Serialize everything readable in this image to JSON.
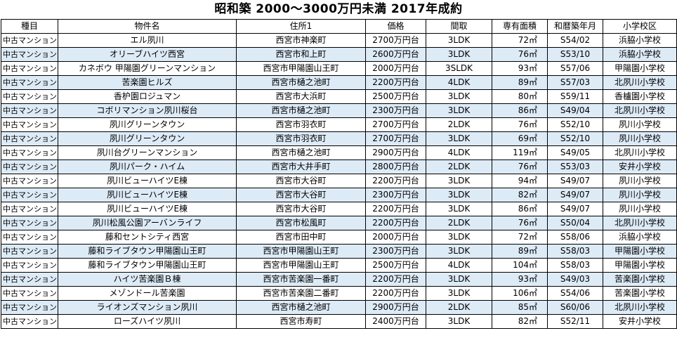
{
  "title": "昭和築 2000～3000万円未満 2017年成約",
  "columns": [
    "種目",
    "物件名",
    "住所1",
    "価格",
    "間取",
    "専有面積",
    "和暦築年月",
    "小学校区"
  ],
  "rows": [
    {
      "type": "中古マンション",
      "name": "エル夙川",
      "address": "西宮市神楽町",
      "price": "2700万円台",
      "layout": "3LDK",
      "area": "72㎡",
      "built": "S54/02",
      "school": "浜脇小学校"
    },
    {
      "type": "中古マンション",
      "name": "オリーブハイツ西宮",
      "address": "西宮市和上町",
      "price": "2600万円台",
      "layout": "3LDK",
      "area": "76㎡",
      "built": "S53/10",
      "school": "浜脇小学校"
    },
    {
      "type": "中古マンション",
      "name": "カネボウ 甲陽園グリーンマンション",
      "address": "西宮市甲陽園山王町",
      "price": "2000万円台",
      "layout": "3SLDK",
      "area": "93㎡",
      "built": "S57/06",
      "school": "甲陽園小学校"
    },
    {
      "type": "中古マンション",
      "name": "苦楽園ヒルズ",
      "address": "西宮市樋之池町",
      "price": "2200万円台",
      "layout": "4LDK",
      "area": "89㎡",
      "built": "S57/03",
      "school": "北夙川小学校"
    },
    {
      "type": "中古マンション",
      "name": "香枦園ロジュマン",
      "address": "西宮市大浜町",
      "price": "2500万円台",
      "layout": "3LDK",
      "area": "80㎡",
      "built": "S59/11",
      "school": "香櫨園小学校"
    },
    {
      "type": "中古マンション",
      "name": "コボリマンション夙川桜台",
      "address": "西宮市樋之池町",
      "price": "2300万円台",
      "layout": "3LDK",
      "area": "86㎡",
      "built": "S49/04",
      "school": "北夙川小学校"
    },
    {
      "type": "中古マンション",
      "name": "夙川グリーンタウン",
      "address": "西宮市羽衣町",
      "price": "2700万円台",
      "layout": "2LDK",
      "area": "76㎡",
      "built": "S52/10",
      "school": "夙川小学校"
    },
    {
      "type": "中古マンション",
      "name": "夙川グリーンタウン",
      "address": "西宮市羽衣町",
      "price": "2700万円台",
      "layout": "3LDK",
      "area": "69㎡",
      "built": "S52/10",
      "school": "夙川小学校"
    },
    {
      "type": "中古マンション",
      "name": "夙川台グリーンマンション",
      "address": "西宮市樋之池町",
      "price": "2900万円台",
      "layout": "4LDK",
      "area": "119㎡",
      "built": "S49/05",
      "school": "北夙川小学校"
    },
    {
      "type": "中古マンション",
      "name": "夙川パーク・ハイム",
      "address": "西宮市大井手町",
      "price": "2800万円台",
      "layout": "2LDK",
      "area": "76㎡",
      "built": "S53/03",
      "school": "安井小学校"
    },
    {
      "type": "中古マンション",
      "name": "夙川ビューハイツE棟",
      "address": "西宮市大谷町",
      "price": "2200万円台",
      "layout": "3LDK",
      "area": "94㎡",
      "built": "S49/07",
      "school": "夙川小学校"
    },
    {
      "type": "中古マンション",
      "name": "夙川ビューハイツE棟",
      "address": "西宮市大谷町",
      "price": "2300万円台",
      "layout": "3LDK",
      "area": "82㎡",
      "built": "S49/07",
      "school": "夙川小学校"
    },
    {
      "type": "中古マンション",
      "name": "夙川ビューハイツE棟",
      "address": "西宮市大谷町",
      "price": "2200万円台",
      "layout": "3LDK",
      "area": "86㎡",
      "built": "S49/07",
      "school": "夙川小学校"
    },
    {
      "type": "中古マンション",
      "name": "夙川松風公園アーバンライフ",
      "address": "西宮市松風町",
      "price": "2200万円台",
      "layout": "2LDK",
      "area": "76㎡",
      "built": "S50/04",
      "school": "北夙川小学校"
    },
    {
      "type": "中古マンション",
      "name": "藤和セントシティ西宮",
      "address": "西宮市田中町",
      "price": "2000万円台",
      "layout": "3LDK",
      "area": "72㎡",
      "built": "S58/06",
      "school": "浜脇小学校"
    },
    {
      "type": "中古マンション",
      "name": "藤和ライブタウン甲陽園山王町",
      "address": "西宮市甲陽園山王町",
      "price": "2300万円台",
      "layout": "3LDK",
      "area": "89㎡",
      "built": "S58/03",
      "school": "甲陽園小学校"
    },
    {
      "type": "中古マンション",
      "name": "藤和ライブタウン甲陽園山王町",
      "address": "西宮市甲陽園山王町",
      "price": "2500万円台",
      "layout": "4LDK",
      "area": "104㎡",
      "built": "S58/03",
      "school": "甲陽園小学校"
    },
    {
      "type": "中古マンション",
      "name": "ハイツ苦楽園Ｂ棟",
      "address": "西宮市苦楽園一番町",
      "price": "2200万円台",
      "layout": "3LDK",
      "area": "93㎡",
      "built": "S49/03",
      "school": "苦楽園小学校"
    },
    {
      "type": "中古マンション",
      "name": "メゾンドール苦楽園",
      "address": "西宮市苦楽園二番町",
      "price": "2200万円台",
      "layout": "3LDK",
      "area": "106㎡",
      "built": "S54/06",
      "school": "苦楽園小学校"
    },
    {
      "type": "中古マンション",
      "name": "ライオンズマンション夙川",
      "address": "西宮市樋之池町",
      "price": "2900万円台",
      "layout": "2LDK",
      "area": "85㎡",
      "built": "S60/06",
      "school": "北夙川小学校"
    },
    {
      "type": "中古マンション",
      "name": "ローズハイツ夙川",
      "address": "西宮市寿町",
      "price": "2400万円台",
      "layout": "3LDK",
      "area": "82㎡",
      "built": "S52/11",
      "school": "安井小学校"
    }
  ]
}
